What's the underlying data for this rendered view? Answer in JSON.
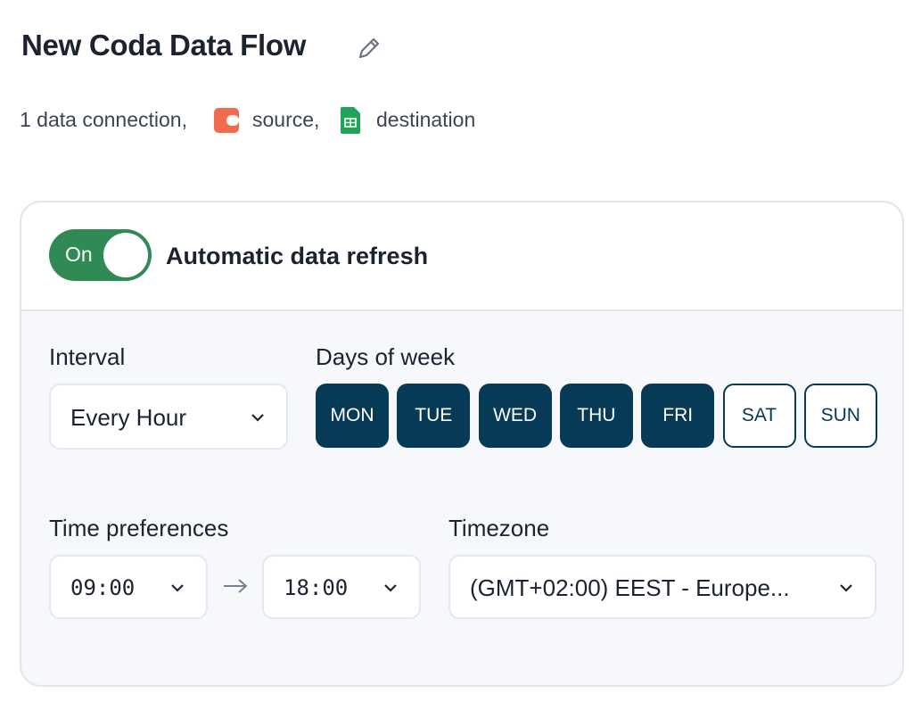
{
  "header": {
    "title": "New Coda Data Flow",
    "connections": "1 data connection,",
    "source": "source,",
    "destination": "destination"
  },
  "refresh": {
    "toggle_label": "On",
    "enabled": true,
    "label": "Automatic data refresh"
  },
  "interval": {
    "label": "Interval",
    "value": "Every Hour"
  },
  "days": {
    "label": "Days of week",
    "items": [
      {
        "label": "MON",
        "selected": true
      },
      {
        "label": "TUE",
        "selected": true
      },
      {
        "label": "WED",
        "selected": true
      },
      {
        "label": "THU",
        "selected": true
      },
      {
        "label": "FRI",
        "selected": true
      },
      {
        "label": "SAT",
        "selected": false
      },
      {
        "label": "SUN",
        "selected": false
      }
    ]
  },
  "time": {
    "label": "Time preferences",
    "start": "09:00",
    "end": "18:00"
  },
  "timezone": {
    "label": "Timezone",
    "value": "(GMT+02:00) EEST - Europe..."
  }
}
